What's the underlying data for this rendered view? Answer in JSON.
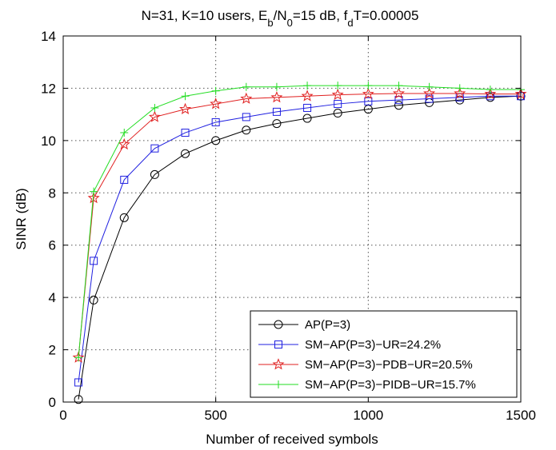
{
  "chart_data": {
    "type": "line",
    "title": {
      "parts": [
        {
          "text": "N=31, K=10 users, E"
        },
        {
          "text": "b",
          "sub": true
        },
        {
          "text": "/N"
        },
        {
          "text": "0",
          "sub": true
        },
        {
          "text": "=15 dB, f"
        },
        {
          "text": "d",
          "sub": true
        },
        {
          "text": "T=0.00005"
        }
      ]
    },
    "xlabel": "Number of received symbols",
    "ylabel": "SINR (dB)",
    "xlim": [
      0,
      1500
    ],
    "ylim": [
      0,
      14
    ],
    "xticks": [
      0,
      500,
      1000,
      1500
    ],
    "yticks": [
      0,
      2,
      4,
      6,
      8,
      10,
      12,
      14
    ],
    "grid": true,
    "legend_position": "bottom-right",
    "series": [
      {
        "name": "AP(P=3)",
        "color": "#000000",
        "marker": "circle",
        "x": [
          50,
          100,
          200,
          300,
          400,
          500,
          600,
          700,
          800,
          900,
          1000,
          1100,
          1200,
          1300,
          1400,
          1500
        ],
        "y": [
          0.1,
          3.9,
          7.05,
          8.7,
          9.5,
          10.0,
          10.4,
          10.65,
          10.85,
          11.05,
          11.2,
          11.35,
          11.45,
          11.55,
          11.65,
          11.7
        ]
      },
      {
        "name": "SM−AP(P=3)−UR=24.2%",
        "color": "#1f1fe0",
        "marker": "square",
        "x": [
          50,
          100,
          200,
          300,
          400,
          500,
          600,
          700,
          800,
          900,
          1000,
          1100,
          1200,
          1300,
          1400,
          1500
        ],
        "y": [
          0.75,
          5.4,
          8.5,
          9.7,
          10.3,
          10.7,
          10.9,
          11.1,
          11.25,
          11.4,
          11.5,
          11.55,
          11.6,
          11.65,
          11.7,
          11.7
        ]
      },
      {
        "name": "SM−AP(P=3)−PDB−UR=20.5%",
        "color": "#e01f1f",
        "marker": "star",
        "x": [
          50,
          100,
          200,
          300,
          400,
          500,
          600,
          700,
          800,
          900,
          1000,
          1100,
          1200,
          1300,
          1400,
          1500
        ],
        "y": [
          1.7,
          7.8,
          9.85,
          10.9,
          11.2,
          11.4,
          11.6,
          11.65,
          11.7,
          11.75,
          11.78,
          11.8,
          11.8,
          11.8,
          11.78,
          11.78
        ]
      },
      {
        "name": "SM−AP(P=3)−PIDB−UR=15.7%",
        "color": "#22dd22",
        "marker": "plus",
        "x": [
          50,
          100,
          200,
          300,
          400,
          500,
          600,
          700,
          800,
          900,
          1000,
          1100,
          1200,
          1300,
          1400,
          1500
        ],
        "y": [
          1.7,
          8.05,
          10.3,
          11.25,
          11.7,
          11.9,
          12.05,
          12.05,
          12.1,
          12.1,
          12.1,
          12.1,
          12.05,
          12.0,
          11.95,
          11.95
        ]
      }
    ]
  }
}
